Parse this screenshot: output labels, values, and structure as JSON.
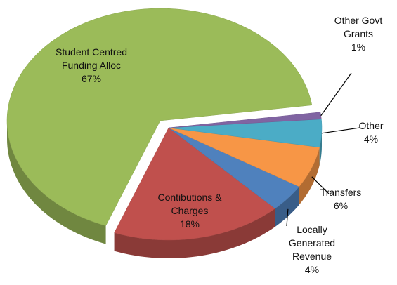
{
  "chart_data": {
    "type": "pie3d",
    "categories": [
      "Student Centred Funding Alloc",
      "Contibutions & Charges",
      "Locally Generated Revenue",
      "Transfers",
      "Other",
      "Other Govt Grants"
    ],
    "values": [
      67,
      18,
      4,
      6,
      4,
      1
    ],
    "value_labels": [
      "67%",
      "18%",
      "4%",
      "6%",
      "4%",
      "1%"
    ],
    "colors": [
      "#9bbb59",
      "#c0504d",
      "#4f81bd",
      "#f79646",
      "#4bacc6",
      "#8064a2"
    ]
  }
}
